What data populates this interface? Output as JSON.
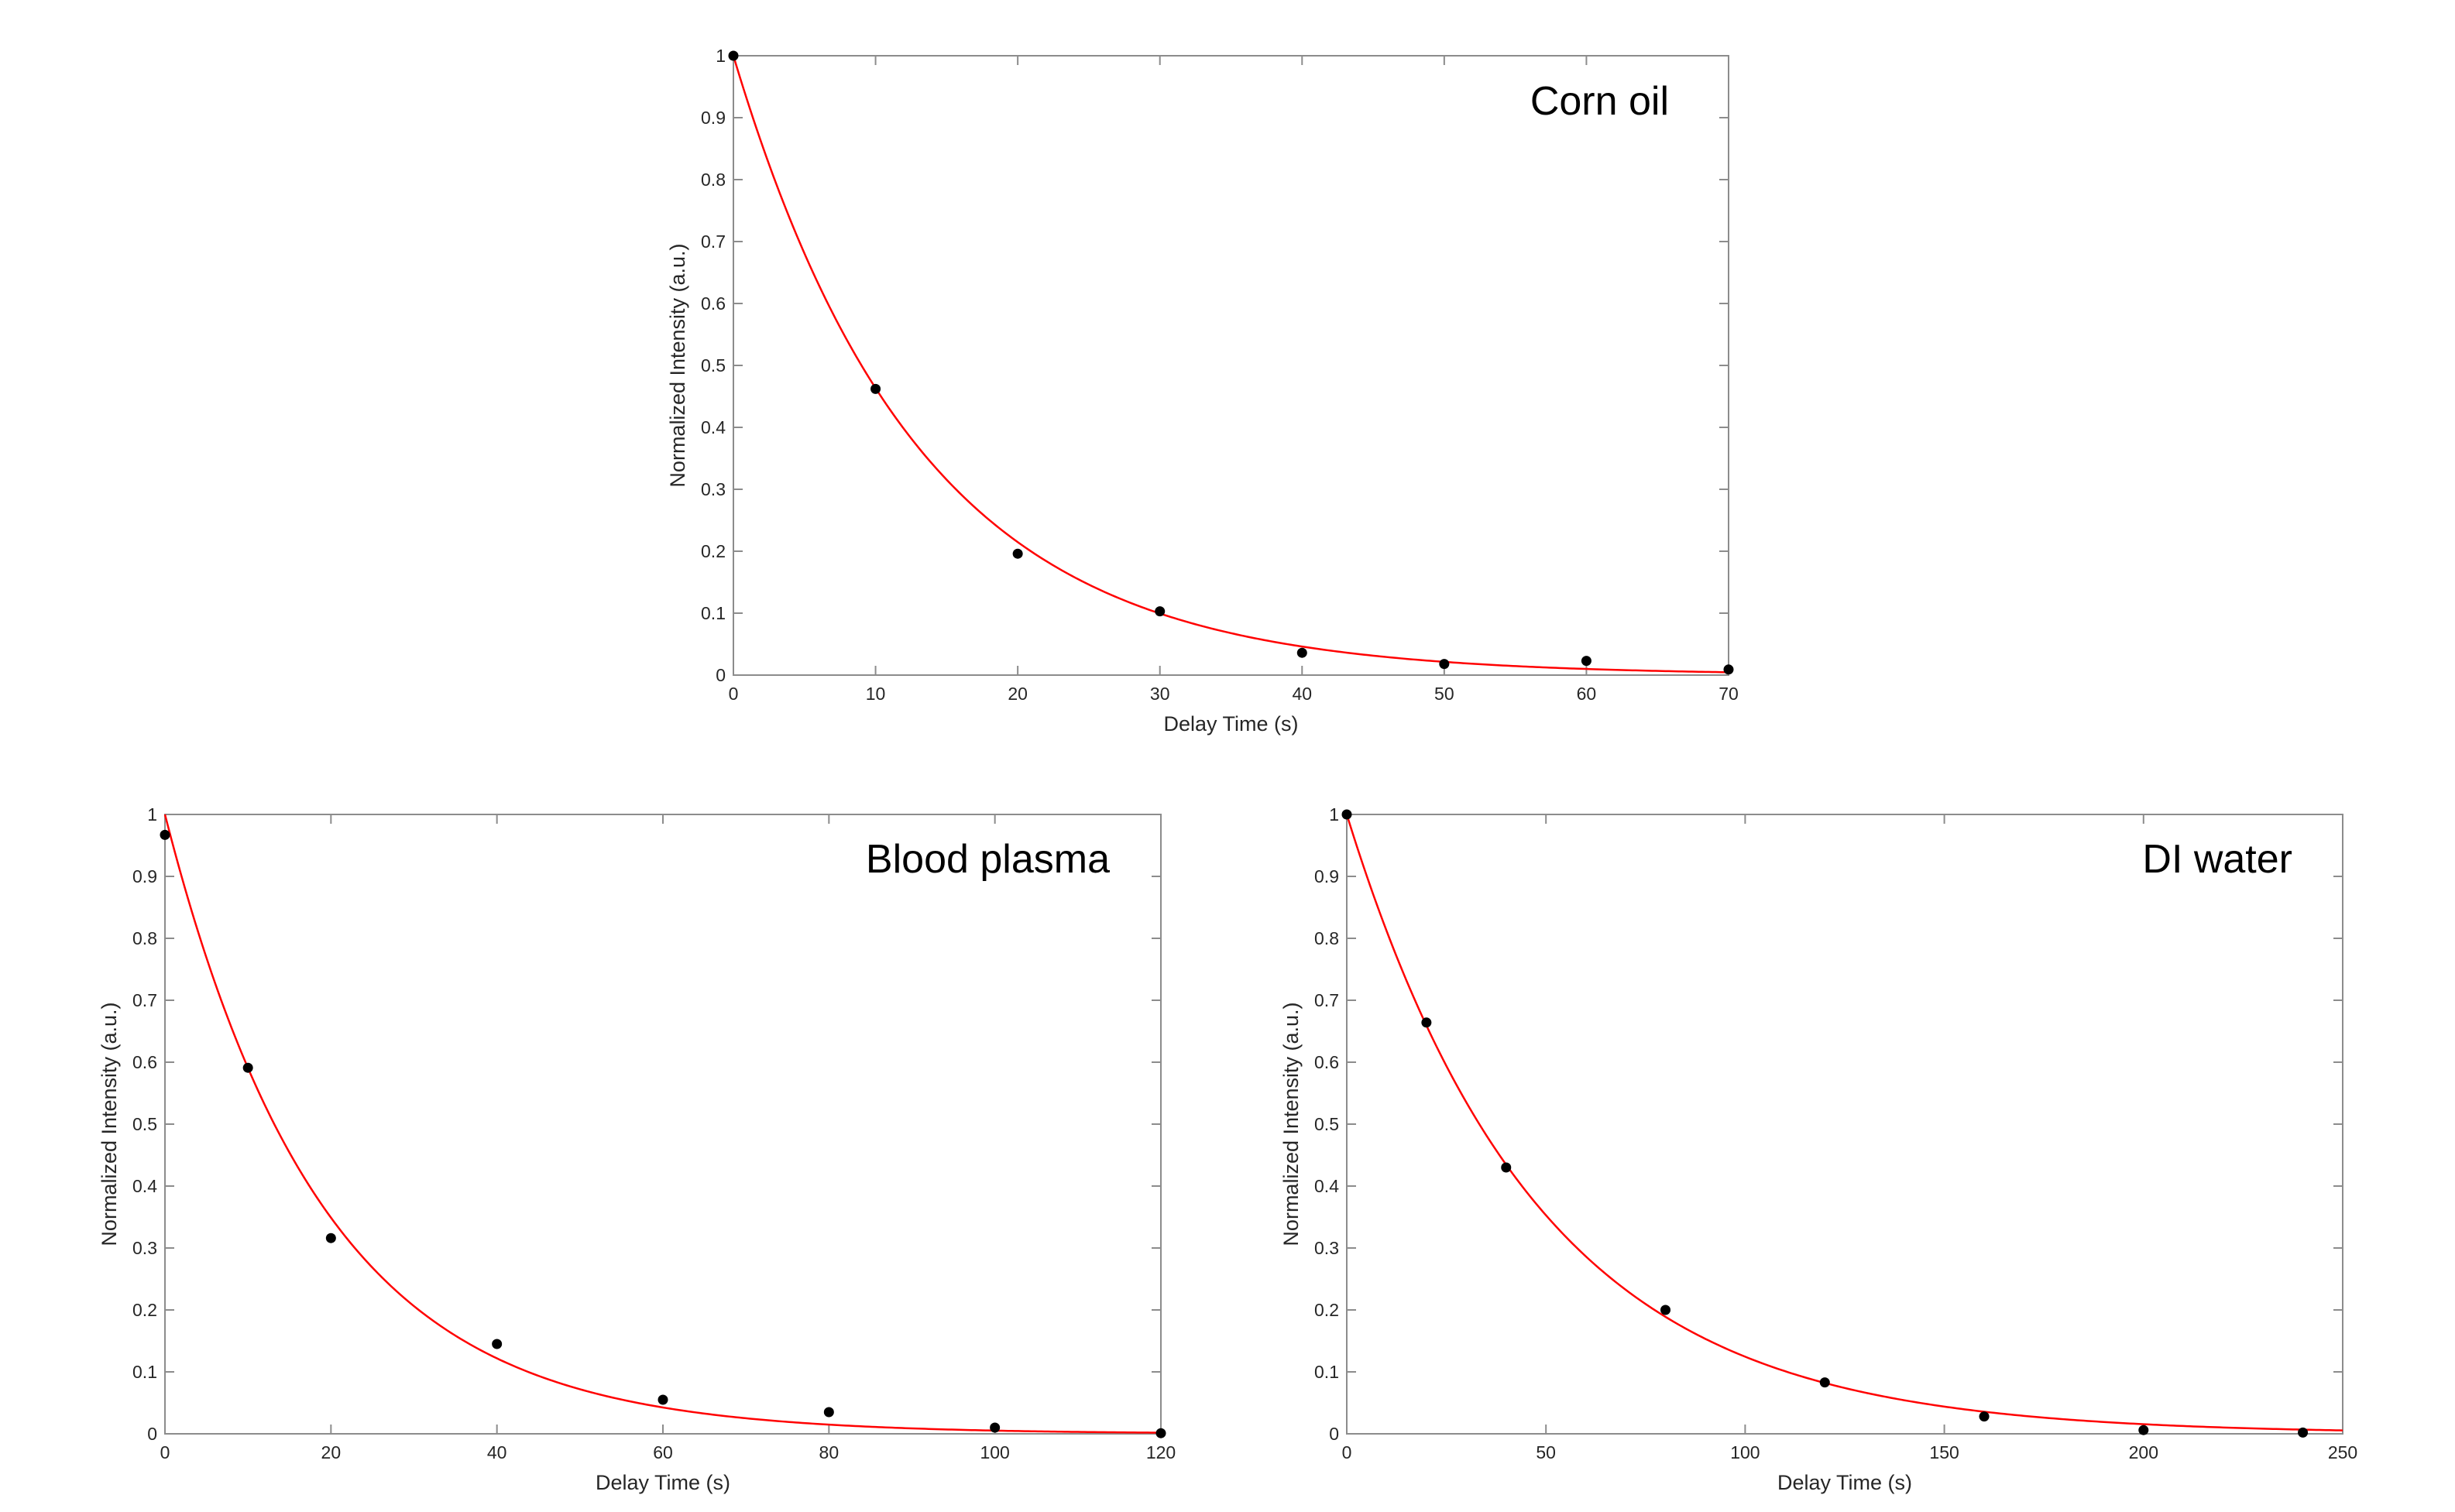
{
  "colors": {
    "axis": "#8c8c8c",
    "fit_line": "#ff0000",
    "points": "#000000",
    "text": "#262626"
  },
  "chart_data": [
    {
      "id": "corn-oil",
      "type": "scatter",
      "title": "Corn oil",
      "xlabel": "Delay Time (s)",
      "ylabel": "Normalized Intensity (a.u.)",
      "xlim": [
        0,
        70
      ],
      "ylim": [
        0,
        1
      ],
      "xticks": [
        0,
        10,
        20,
        30,
        40,
        50,
        60,
        70
      ],
      "yticks": [
        0,
        0.1,
        0.2,
        0.3,
        0.4,
        0.5,
        0.6,
        0.7,
        0.8,
        0.9,
        1
      ],
      "grid": false,
      "series": [
        {
          "kind": "points",
          "x": [
            0,
            10,
            20,
            30,
            40,
            50,
            60,
            70
          ],
          "y": [
            1.0,
            0.462,
            0.196,
            0.103,
            0.036,
            0.018,
            0.023,
            0.009
          ]
        },
        {
          "kind": "exponential-fit",
          "amplitude": 1.0,
          "time_constant": 13.0
        }
      ]
    },
    {
      "id": "blood-plasma",
      "type": "scatter",
      "title": "Blood plasma",
      "xlabel": "Delay Time (s)",
      "ylabel": "Normalized Intensity (a.u.)",
      "xlim": [
        0,
        120
      ],
      "ylim": [
        0,
        1
      ],
      "xticks": [
        0,
        20,
        40,
        60,
        80,
        100,
        120
      ],
      "yticks": [
        0,
        0.1,
        0.2,
        0.3,
        0.4,
        0.5,
        0.6,
        0.7,
        0.8,
        0.9,
        1
      ],
      "grid": false,
      "series": [
        {
          "kind": "points",
          "x": [
            0,
            10,
            20,
            40,
            60,
            80,
            100,
            120
          ],
          "y": [
            0.967,
            0.591,
            0.316,
            0.145,
            0.055,
            0.035,
            0.01,
            0.001
          ]
        },
        {
          "kind": "exponential-fit",
          "amplitude": 1.0,
          "time_constant": 19.0
        }
      ]
    },
    {
      "id": "di-water",
      "type": "scatter",
      "title": "DI water",
      "xlabel": "Delay Time (s)",
      "ylabel": "Normalized Intensity (a.u.)",
      "xlim": [
        0,
        250
      ],
      "ylim": [
        0,
        1
      ],
      "xticks": [
        0,
        50,
        100,
        150,
        200,
        250
      ],
      "yticks": [
        0,
        0.1,
        0.2,
        0.3,
        0.4,
        0.5,
        0.6,
        0.7,
        0.8,
        0.9,
        1
      ],
      "grid": false,
      "series": [
        {
          "kind": "points",
          "x": [
            0,
            20,
            40,
            80,
            120,
            160,
            200,
            240
          ],
          "y": [
            1.0,
            0.664,
            0.43,
            0.2,
            0.083,
            0.028,
            0.006,
            0.002
          ]
        },
        {
          "kind": "exponential-fit",
          "amplitude": 1.0,
          "time_constant": 48.0
        }
      ]
    }
  ]
}
